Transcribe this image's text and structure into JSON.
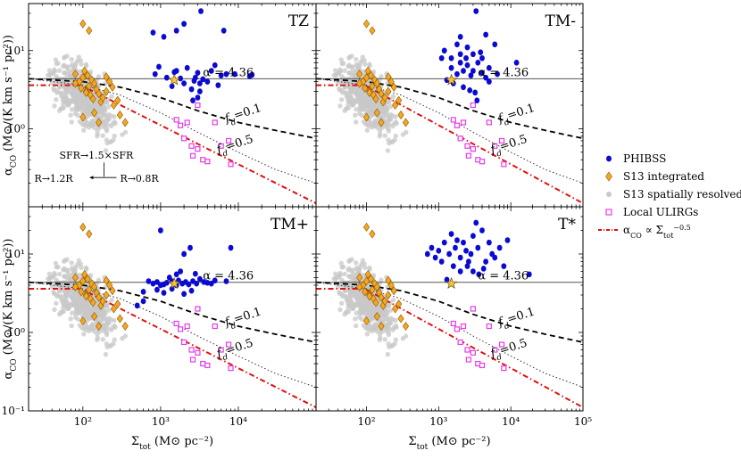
{
  "chart_data": {
    "type": "scatter",
    "layout": "2x2 grid",
    "x_axis": {
      "label_main": "Σ",
      "label_sub": "tot",
      "label_units": " (M⊙ pc⁻²)",
      "scale": "log",
      "range": [
        20,
        100000
      ],
      "tick_labels": [
        {
          "v": 100,
          "t": "10²"
        },
        {
          "v": 1000,
          "t": "10³"
        },
        {
          "v": 10000,
          "t": "10⁴"
        },
        {
          "v": 100000,
          "t": "10⁵"
        }
      ]
    },
    "y_axis": {
      "label_main": "α",
      "label_sub": "CO",
      "label_units": " (M⊙/(K km s⁻¹ pc²))",
      "scale": "log",
      "range": [
        0.1,
        40
      ],
      "tick_labels": [
        {
          "v": 0.1,
          "t": "10⁻¹"
        },
        {
          "v": 1,
          "t": "10⁰"
        },
        {
          "v": 10,
          "t": "10¹"
        }
      ]
    },
    "mw_line": {
      "value": 4.36,
      "label": "α = 4.36"
    },
    "fd_labels": [
      {
        "text": "f",
        "sub": "d",
        "val": "=0.1"
      },
      {
        "text": "f",
        "sub": "d",
        "val": "=0.5"
      }
    ],
    "legend": [
      {
        "key": "phibss",
        "label": "PHIBSS",
        "color": "#0a0ad2"
      },
      {
        "key": "s13int",
        "label": "S13 integrated",
        "color": "#f5a623"
      },
      {
        "key": "s13res",
        "label": "S13 spatially resolved",
        "color": "#c8c8c8"
      },
      {
        "key": "ulirg",
        "label": "Local ULIRGs",
        "color": "#e63ce6"
      },
      {
        "key": "powerlaw",
        "label": "α",
        "sub": "CO",
        "rest": " ∝ Σ",
        "sub2": "tot",
        "sup": "−0.5",
        "color": "#e01010"
      }
    ],
    "annotations": {
      "sfr": "SFR→1.5×SFR",
      "r_left": "R→1.2R",
      "r_right": "R→0.8R"
    },
    "panels": [
      {
        "name": "TZ",
        "phibss": [
          [
            800,
            17
          ],
          [
            1100,
            15
          ],
          [
            1600,
            18
          ],
          [
            2000,
            22
          ],
          [
            3300,
            32
          ],
          [
            6500,
            18
          ],
          [
            850,
            5.0
          ],
          [
            950,
            6.2
          ],
          [
            1200,
            4.5
          ],
          [
            1400,
            3.5
          ],
          [
            1600,
            5.5
          ],
          [
            1800,
            4.4
          ],
          [
            2000,
            3.8
          ],
          [
            2200,
            6.0
          ],
          [
            2500,
            3.2
          ],
          [
            2800,
            4.5
          ],
          [
            3000,
            5.2
          ],
          [
            3200,
            3.0
          ],
          [
            3500,
            4.3
          ],
          [
            4000,
            4.0
          ],
          [
            4500,
            5.5
          ],
          [
            5000,
            6.5
          ],
          [
            5500,
            3.6
          ],
          [
            6000,
            4.8
          ],
          [
            7000,
            5.0
          ],
          [
            3000,
            2.5
          ],
          [
            3200,
            3.8
          ],
          [
            2600,
            2.3
          ],
          [
            2700,
            4.1
          ],
          [
            1500,
            5.3
          ],
          [
            9000,
            5.0
          ],
          [
            14000,
            4.7
          ],
          [
            15000,
            4.9
          ]
        ],
        "star": [
          1500,
          4.2
        ]
      },
      {
        "name": "TM-",
        "phibss": [
          [
            1200,
            10
          ],
          [
            1500,
            8
          ],
          [
            1800,
            12
          ],
          [
            2000,
            15
          ],
          [
            2500,
            11
          ],
          [
            3000,
            9
          ],
          [
            3300,
            32
          ],
          [
            4000,
            8
          ],
          [
            4500,
            16
          ],
          [
            6000,
            12
          ],
          [
            1500,
            6
          ],
          [
            1800,
            5
          ],
          [
            2000,
            7
          ],
          [
            2200,
            5.5
          ],
          [
            2500,
            6.5
          ],
          [
            2800,
            4.8
          ],
          [
            3000,
            5.5
          ],
          [
            3500,
            7
          ],
          [
            4000,
            5.2
          ],
          [
            4500,
            4.5
          ],
          [
            5000,
            6
          ],
          [
            1300,
            4.2
          ],
          [
            1600,
            3.8
          ],
          [
            2200,
            3.4
          ],
          [
            2700,
            3.1
          ],
          [
            3200,
            2.9
          ],
          [
            3400,
            2.3
          ],
          [
            5000,
            4
          ],
          [
            6500,
            5
          ],
          [
            2000,
            9
          ],
          [
            2400,
            8
          ],
          [
            3800,
            9.5
          ],
          [
            1100,
            8
          ],
          [
            12000,
            7
          ]
        ],
        "star": [
          1500,
          4.2
        ]
      },
      {
        "name": "TM+",
        "phibss": [
          [
            1000,
            20
          ],
          [
            500,
            2.2
          ],
          [
            600,
            2.5
          ],
          [
            1300,
            5.0
          ],
          [
            1600,
            5.5
          ],
          [
            1800,
            6.0
          ],
          [
            2000,
            10
          ],
          [
            2400,
            12
          ],
          [
            700,
            4.5
          ],
          [
            800,
            4.2
          ],
          [
            900,
            4.4
          ],
          [
            1000,
            4.0
          ],
          [
            1100,
            4.1
          ],
          [
            1200,
            4.3
          ],
          [
            1400,
            4.5
          ],
          [
            1600,
            4.0
          ],
          [
            1700,
            4.6
          ],
          [
            1900,
            4.2
          ],
          [
            2100,
            4.4
          ],
          [
            2300,
            4.1
          ],
          [
            2600,
            4.5
          ],
          [
            2900,
            4.2
          ],
          [
            3200,
            4.8
          ],
          [
            3600,
            4.4
          ],
          [
            4000,
            4.3
          ],
          [
            4500,
            4.2
          ],
          [
            5000,
            4.6
          ],
          [
            900,
            3.5
          ],
          [
            1100,
            3.2
          ],
          [
            1400,
            3.6
          ],
          [
            2000,
            3.1
          ],
          [
            2500,
            3.4
          ],
          [
            7000,
            4.5
          ],
          [
            8000,
            12
          ],
          [
            2800,
            5.6
          ],
          [
            600,
            3.3
          ]
        ],
        "star": [
          1500,
          4.2
        ]
      },
      {
        "name": "T*",
        "phibss": [
          [
            700,
            10
          ],
          [
            800,
            12
          ],
          [
            900,
            9
          ],
          [
            1000,
            11
          ],
          [
            1100,
            8
          ],
          [
            1200,
            14
          ],
          [
            1400,
            10
          ],
          [
            1500,
            18
          ],
          [
            1600,
            7
          ],
          [
            1700,
            12
          ],
          [
            1800,
            15
          ],
          [
            2000,
            9
          ],
          [
            2200,
            14
          ],
          [
            2400,
            11
          ],
          [
            2600,
            8
          ],
          [
            2800,
            10
          ],
          [
            3000,
            6
          ],
          [
            3300,
            25
          ],
          [
            3500,
            12
          ],
          [
            4000,
            20
          ],
          [
            4500,
            8
          ],
          [
            5000,
            14
          ],
          [
            5500,
            10
          ],
          [
            6000,
            9
          ],
          [
            7000,
            12
          ],
          [
            8000,
            7
          ],
          [
            9000,
            15
          ],
          [
            2000,
            6
          ],
          [
            2500,
            7
          ],
          [
            3600,
            5.5
          ],
          [
            4200,
            6.5
          ],
          [
            3000,
            17
          ],
          [
            1300,
            4.7
          ],
          [
            18000,
            5.5
          ]
        ],
        "star": [
          1500,
          4.2
        ]
      }
    ],
    "s13_integrated": [
      [
        100,
        22
      ],
      [
        120,
        18
      ],
      [
        80,
        5
      ],
      [
        90,
        4
      ],
      [
        100,
        4.5
      ],
      [
        110,
        3
      ],
      [
        120,
        3.5
      ],
      [
        130,
        4.2
      ],
      [
        140,
        3.8
      ],
      [
        150,
        3.2
      ],
      [
        160,
        2.8
      ],
      [
        170,
        2.2
      ],
      [
        180,
        2.5
      ],
      [
        200,
        3.0
      ],
      [
        220,
        4.0
      ],
      [
        250,
        2.0
      ],
      [
        300,
        1.5
      ],
      [
        350,
        1.2
      ],
      [
        80,
        3.8
      ],
      [
        95,
        3.3
      ],
      [
        105,
        5.5
      ],
      [
        115,
        4.8
      ],
      [
        125,
        2.7
      ],
      [
        135,
        2.4
      ],
      [
        100,
        1.4
      ],
      [
        110,
        2.9
      ],
      [
        140,
        1.6
      ],
      [
        160,
        1.2
      ],
      [
        200,
        4.6
      ],
      [
        240,
        3.4
      ],
      [
        280,
        2.3
      ]
    ],
    "ulirg": [
      [
        1600,
        1.3
      ],
      [
        1800,
        1.1
      ],
      [
        2000,
        0.75
      ],
      [
        2500,
        0.6
      ],
      [
        2600,
        0.45
      ],
      [
        3000,
        0.55
      ],
      [
        3500,
        0.4
      ],
      [
        4000,
        0.38
      ],
      [
        5000,
        1.2
      ],
      [
        6000,
        0.6
      ],
      [
        8000,
        0.35
      ],
      [
        3000,
        2.0
      ],
      [
        2200,
        1.2
      ],
      [
        7500,
        0.7
      ]
    ],
    "fd_curves": {
      "f01": [
        [
          20,
          4.36
        ],
        [
          100,
          4.0
        ],
        [
          300,
          3.4
        ],
        [
          1000,
          2.5
        ],
        [
          3000,
          1.7
        ],
        [
          10000,
          1.2
        ],
        [
          30000,
          0.95
        ],
        [
          100000,
          0.75
        ]
      ],
      "f05": [
        [
          20,
          4.36
        ],
        [
          100,
          3.6
        ],
        [
          300,
          2.7
        ],
        [
          1000,
          1.6
        ],
        [
          3000,
          0.9
        ],
        [
          10000,
          0.5
        ],
        [
          30000,
          0.3
        ],
        [
          100000,
          0.2
        ]
      ]
    },
    "powerlaw": {
      "norm": 35,
      "exponent": -0.5,
      "cap": 3.6
    }
  }
}
